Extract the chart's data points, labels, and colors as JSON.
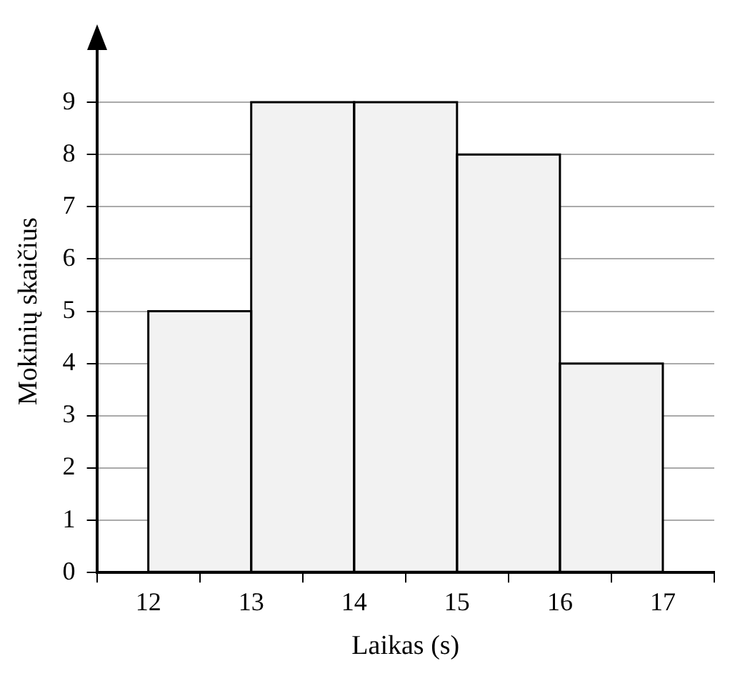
{
  "chart_data": {
    "type": "histogram",
    "xlabel": "Laikas (s)",
    "ylabel": "Mokinių skaičius",
    "bins": [
      12,
      13,
      14,
      15,
      16,
      17
    ],
    "values": [
      5,
      9,
      9,
      8,
      4
    ],
    "color": "#f2f2f2",
    "xlim": [
      11.5,
      17.5
    ],
    "ylim": [
      0,
      10
    ],
    "xticks": [
      12,
      13,
      14,
      15,
      16,
      17
    ],
    "yticks": [
      0,
      1,
      2,
      3,
      4,
      5,
      6,
      7,
      8,
      9
    ],
    "grid": "y"
  }
}
